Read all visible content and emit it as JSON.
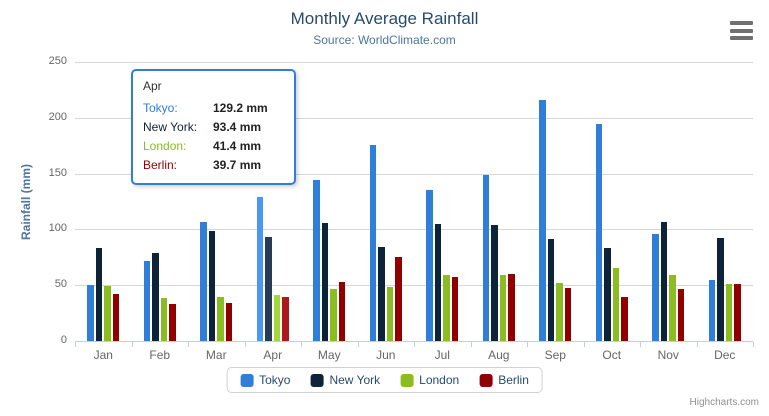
{
  "chart": {
    "title": "Monthly Average Rainfall",
    "subtitle": "Source: WorldClimate.com",
    "y_axis_title": "Rainfall (mm)",
    "credits": "Highcharts.com"
  },
  "chart_data": {
    "type": "bar",
    "title": "Monthly Average Rainfall",
    "subtitle": "Source: WorldClimate.com",
    "xlabel": "",
    "ylabel": "Rainfall (mm)",
    "ylim": [
      0,
      250
    ],
    "yticks": [
      0,
      50,
      100,
      150,
      200,
      250
    ],
    "grid": true,
    "legend_position": "bottom-center",
    "categories": [
      "Jan",
      "Feb",
      "Mar",
      "Apr",
      "May",
      "Jun",
      "Jul",
      "Aug",
      "Sep",
      "Oct",
      "Nov",
      "Dec"
    ],
    "series": [
      {
        "name": "Tokyo",
        "color": "#2f7ed8",
        "hover_color": "#4998f2",
        "values": [
          49.9,
          71.5,
          106.4,
          129.2,
          144.0,
          176.0,
          135.6,
          148.5,
          216.4,
          194.1,
          95.6,
          54.4
        ]
      },
      {
        "name": "New York",
        "color": "#0d233a",
        "hover_color": "#273d54",
        "values": [
          83.6,
          78.8,
          98.5,
          93.4,
          106.0,
          84.5,
          105.0,
          104.3,
          91.2,
          83.5,
          106.6,
          92.3
        ]
      },
      {
        "name": "London",
        "color": "#8bbc21",
        "hover_color": "#a5d63b",
        "values": [
          48.9,
          38.8,
          39.3,
          41.4,
          47.0,
          48.3,
          59.0,
          59.6,
          52.4,
          65.2,
          59.3,
          51.2
        ]
      },
      {
        "name": "Berlin",
        "color": "#910000",
        "hover_color": "#ab1a1a",
        "values": [
          42.4,
          33.2,
          34.5,
          39.7,
          52.6,
          75.5,
          57.4,
          60.4,
          47.6,
          39.1,
          46.8,
          51.1
        ]
      }
    ],
    "highlighted_category": "Apr"
  },
  "tooltip": {
    "title": "Apr",
    "rows": [
      {
        "label": "Tokyo:",
        "value": "129.2 mm",
        "color": "#2f7ed8"
      },
      {
        "label": "New York:",
        "value": "93.4 mm",
        "color": "#0d233a"
      },
      {
        "label": "London:",
        "value": "41.4 mm",
        "color": "#8bbc21"
      },
      {
        "label": "Berlin:",
        "value": "39.7 mm",
        "color": "#910000"
      }
    ]
  },
  "style": {
    "grid_color": "#d6d6d6",
    "axis_line_color": "#c0d0e0",
    "axis_label_color": "#666666",
    "title_color": "#274b6d",
    "subtitle_color": "#4d759e",
    "legend_text_color": "#274b6d",
    "credits_color": "#909090"
  }
}
